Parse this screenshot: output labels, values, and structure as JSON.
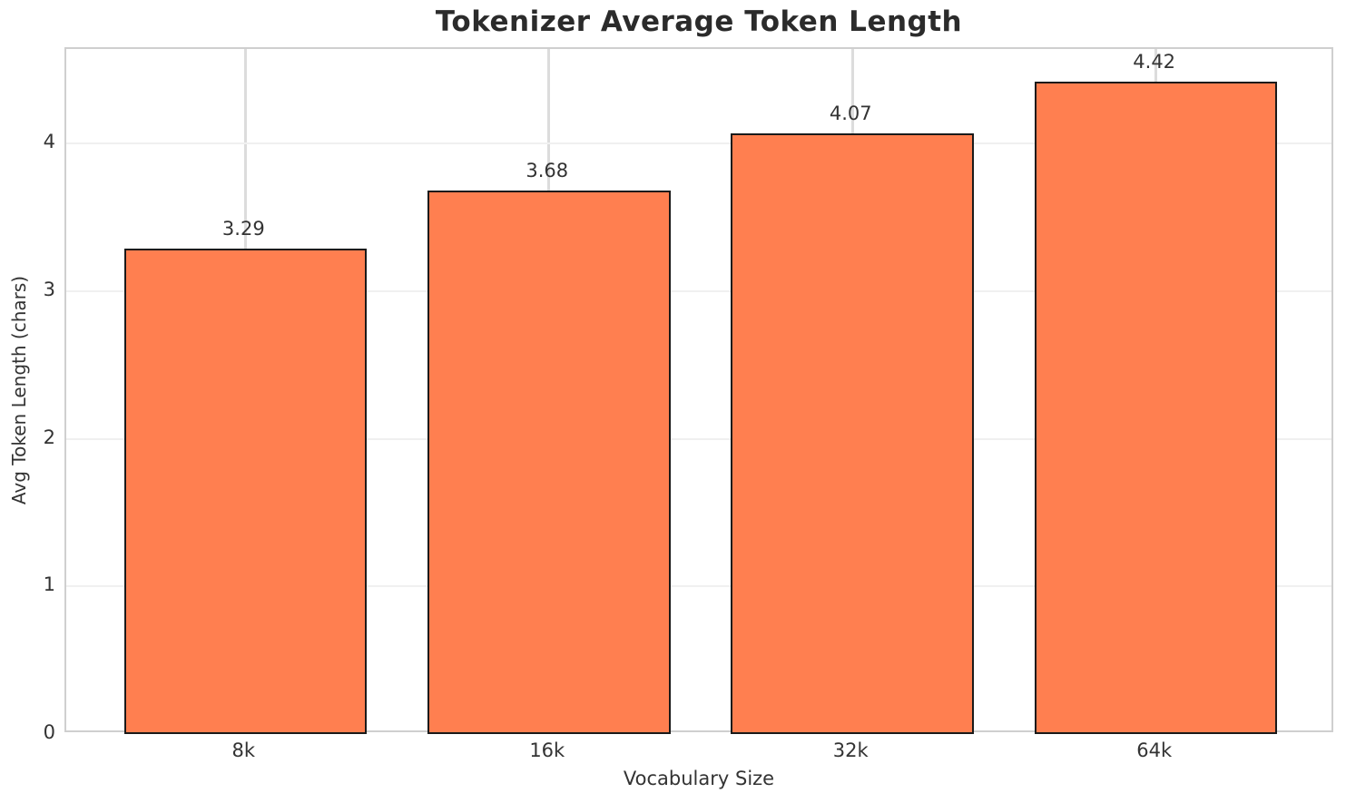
{
  "chart_data": {
    "type": "bar",
    "title": "Tokenizer Average Token Length",
    "xlabel": "Vocabulary Size",
    "ylabel": "Avg Token Length (chars)",
    "categories": [
      "8k",
      "16k",
      "32k",
      "64k"
    ],
    "values": [
      3.29,
      3.68,
      4.07,
      4.42
    ],
    "value_labels": [
      "3.29",
      "3.68",
      "4.07",
      "4.42"
    ],
    "yticks": [
      0,
      1,
      2,
      3,
      4
    ],
    "ylim": [
      0,
      4.64
    ],
    "xlim": [
      -0.59,
      3.59
    ],
    "bar_width": 0.8,
    "grid": true,
    "legend": "none",
    "colors": {
      "bar_fill": "#FF7F50",
      "bar_edge": "#1a1a1a",
      "h_grid": "#f0f0f0",
      "v_grid": "#dcdcdc",
      "spine": "#cfcfcf",
      "text": "#333333",
      "title": "#2b2b2b",
      "background": "#ffffff"
    }
  }
}
